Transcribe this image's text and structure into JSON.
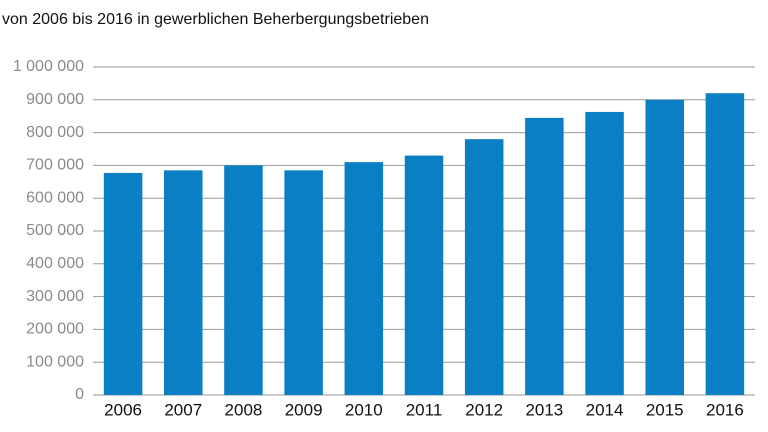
{
  "chart_data": {
    "type": "bar",
    "subtitle": "von 2006 bis 2016 in gewerblichen Beherbergungsbetrieben",
    "categories": [
      "2006",
      "2007",
      "2008",
      "2009",
      "2010",
      "2011",
      "2012",
      "2013",
      "2014",
      "2015",
      "2016"
    ],
    "values": [
      677000,
      685000,
      700000,
      685000,
      710000,
      730000,
      780000,
      845000,
      863000,
      900000,
      920000
    ],
    "color": "#0b7fc4",
    "ylim": [
      0,
      1000000
    ],
    "yticks": [
      0,
      {
        "value": 100000,
        "label": "100 000"
      },
      {
        "value": 200000,
        "label": "200 000"
      },
      {
        "value": 300000,
        "label": "300 000"
      },
      {
        "value": 400000,
        "label": "400 000"
      },
      {
        "value": 500000,
        "label": "500 000"
      },
      {
        "value": 600000,
        "label": "600 000"
      },
      {
        "value": 700000,
        "label": "700 000"
      },
      {
        "value": 800000,
        "label": "800 000"
      },
      {
        "value": 900000,
        "label": "900 000"
      },
      {
        "value": 1000000,
        "label": "1 000 000"
      }
    ],
    "grid": true
  }
}
